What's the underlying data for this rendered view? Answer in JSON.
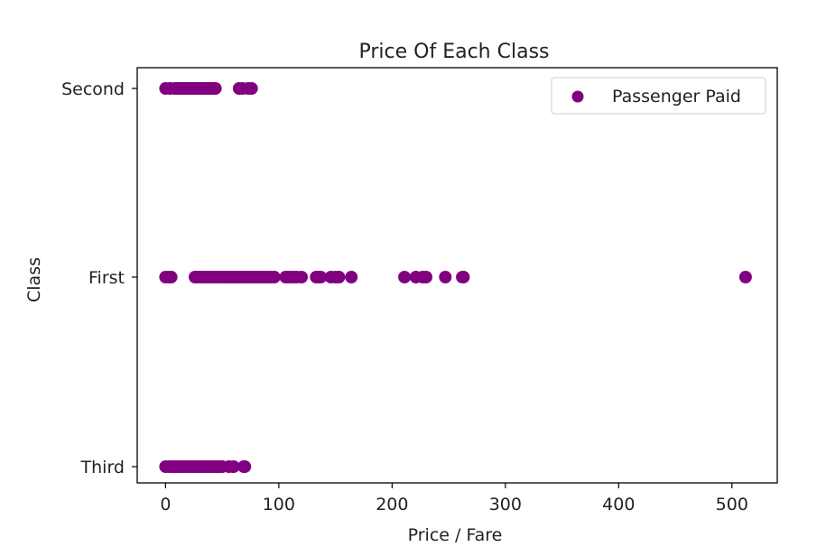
{
  "chart_data": {
    "type": "scatter",
    "title": "Price Of Each Class",
    "xlabel": "Price / Fare",
    "ylabel": "Class",
    "xlim": [
      -25,
      540
    ],
    "x_ticks": [
      0,
      100,
      200,
      300,
      400,
      500
    ],
    "y_categories": [
      "Third",
      "First",
      "Second"
    ],
    "grid": false,
    "legend_position": "top-right",
    "marker_color": "#800080",
    "series": [
      {
        "name": "Passenger Paid",
        "points": [
          {
            "x": 0,
            "y": "Second"
          },
          {
            "x": 4,
            "y": "Second"
          },
          {
            "x": 8,
            "y": "Second"
          },
          {
            "x": 10,
            "y": "Second"
          },
          {
            "x": 12,
            "y": "Second"
          },
          {
            "x": 14,
            "y": "Second"
          },
          {
            "x": 16,
            "y": "Second"
          },
          {
            "x": 18,
            "y": "Second"
          },
          {
            "x": 20,
            "y": "Second"
          },
          {
            "x": 22,
            "y": "Second"
          },
          {
            "x": 24,
            "y": "Second"
          },
          {
            "x": 26,
            "y": "Second"
          },
          {
            "x": 28,
            "y": "Second"
          },
          {
            "x": 30,
            "y": "Second"
          },
          {
            "x": 32,
            "y": "Second"
          },
          {
            "x": 34,
            "y": "Second"
          },
          {
            "x": 36,
            "y": "Second"
          },
          {
            "x": 38,
            "y": "Second"
          },
          {
            "x": 40,
            "y": "Second"
          },
          {
            "x": 42,
            "y": "Second"
          },
          {
            "x": 44,
            "y": "Second"
          },
          {
            "x": 65,
            "y": "Second"
          },
          {
            "x": 68,
            "y": "Second"
          },
          {
            "x": 73,
            "y": "Second"
          },
          {
            "x": 76,
            "y": "Second"
          },
          {
            "x": 0,
            "y": "First"
          },
          {
            "x": 3,
            "y": "First"
          },
          {
            "x": 5,
            "y": "First"
          },
          {
            "x": 26,
            "y": "First"
          },
          {
            "x": 28,
            "y": "First"
          },
          {
            "x": 30,
            "y": "First"
          },
          {
            "x": 32,
            "y": "First"
          },
          {
            "x": 34,
            "y": "First"
          },
          {
            "x": 36,
            "y": "First"
          },
          {
            "x": 38,
            "y": "First"
          },
          {
            "x": 40,
            "y": "First"
          },
          {
            "x": 42,
            "y": "First"
          },
          {
            "x": 44,
            "y": "First"
          },
          {
            "x": 46,
            "y": "First"
          },
          {
            "x": 48,
            "y": "First"
          },
          {
            "x": 50,
            "y": "First"
          },
          {
            "x": 52,
            "y": "First"
          },
          {
            "x": 54,
            "y": "First"
          },
          {
            "x": 56,
            "y": "First"
          },
          {
            "x": 58,
            "y": "First"
          },
          {
            "x": 60,
            "y": "First"
          },
          {
            "x": 62,
            "y": "First"
          },
          {
            "x": 64,
            "y": "First"
          },
          {
            "x": 66,
            "y": "First"
          },
          {
            "x": 68,
            "y": "First"
          },
          {
            "x": 70,
            "y": "First"
          },
          {
            "x": 72,
            "y": "First"
          },
          {
            "x": 74,
            "y": "First"
          },
          {
            "x": 76,
            "y": "First"
          },
          {
            "x": 78,
            "y": "First"
          },
          {
            "x": 80,
            "y": "First"
          },
          {
            "x": 82,
            "y": "First"
          },
          {
            "x": 84,
            "y": "First"
          },
          {
            "x": 86,
            "y": "First"
          },
          {
            "x": 88,
            "y": "First"
          },
          {
            "x": 90,
            "y": "First"
          },
          {
            "x": 93,
            "y": "First"
          },
          {
            "x": 96,
            "y": "First"
          },
          {
            "x": 106,
            "y": "First"
          },
          {
            "x": 108,
            "y": "First"
          },
          {
            "x": 110,
            "y": "First"
          },
          {
            "x": 113,
            "y": "First"
          },
          {
            "x": 116,
            "y": "First"
          },
          {
            "x": 120,
            "y": "First"
          },
          {
            "x": 133,
            "y": "First"
          },
          {
            "x": 135,
            "y": "First"
          },
          {
            "x": 137,
            "y": "First"
          },
          {
            "x": 146,
            "y": "First"
          },
          {
            "x": 150,
            "y": "First"
          },
          {
            "x": 153,
            "y": "First"
          },
          {
            "x": 164,
            "y": "First"
          },
          {
            "x": 211,
            "y": "First"
          },
          {
            "x": 221,
            "y": "First"
          },
          {
            "x": 227,
            "y": "First"
          },
          {
            "x": 230,
            "y": "First"
          },
          {
            "x": 247,
            "y": "First"
          },
          {
            "x": 262,
            "y": "First"
          },
          {
            "x": 263,
            "y": "First"
          },
          {
            "x": 512,
            "y": "First"
          },
          {
            "x": 0,
            "y": "Third"
          },
          {
            "x": 3,
            "y": "Third"
          },
          {
            "x": 6,
            "y": "Third"
          },
          {
            "x": 7,
            "y": "Third"
          },
          {
            "x": 8,
            "y": "Third"
          },
          {
            "x": 10,
            "y": "Third"
          },
          {
            "x": 12,
            "y": "Third"
          },
          {
            "x": 14,
            "y": "Third"
          },
          {
            "x": 16,
            "y": "Third"
          },
          {
            "x": 18,
            "y": "Third"
          },
          {
            "x": 20,
            "y": "Third"
          },
          {
            "x": 22,
            "y": "Third"
          },
          {
            "x": 24,
            "y": "Third"
          },
          {
            "x": 26,
            "y": "Third"
          },
          {
            "x": 28,
            "y": "Third"
          },
          {
            "x": 30,
            "y": "Third"
          },
          {
            "x": 32,
            "y": "Third"
          },
          {
            "x": 34,
            "y": "Third"
          },
          {
            "x": 36,
            "y": "Third"
          },
          {
            "x": 38,
            "y": "Third"
          },
          {
            "x": 40,
            "y": "Third"
          },
          {
            "x": 42,
            "y": "Third"
          },
          {
            "x": 44,
            "y": "Third"
          },
          {
            "x": 46,
            "y": "Third"
          },
          {
            "x": 48,
            "y": "Third"
          },
          {
            "x": 50,
            "y": "Third"
          },
          {
            "x": 56,
            "y": "Third"
          },
          {
            "x": 60,
            "y": "Third"
          },
          {
            "x": 69,
            "y": "Third"
          },
          {
            "x": 70,
            "y": "Third"
          }
        ]
      }
    ]
  }
}
